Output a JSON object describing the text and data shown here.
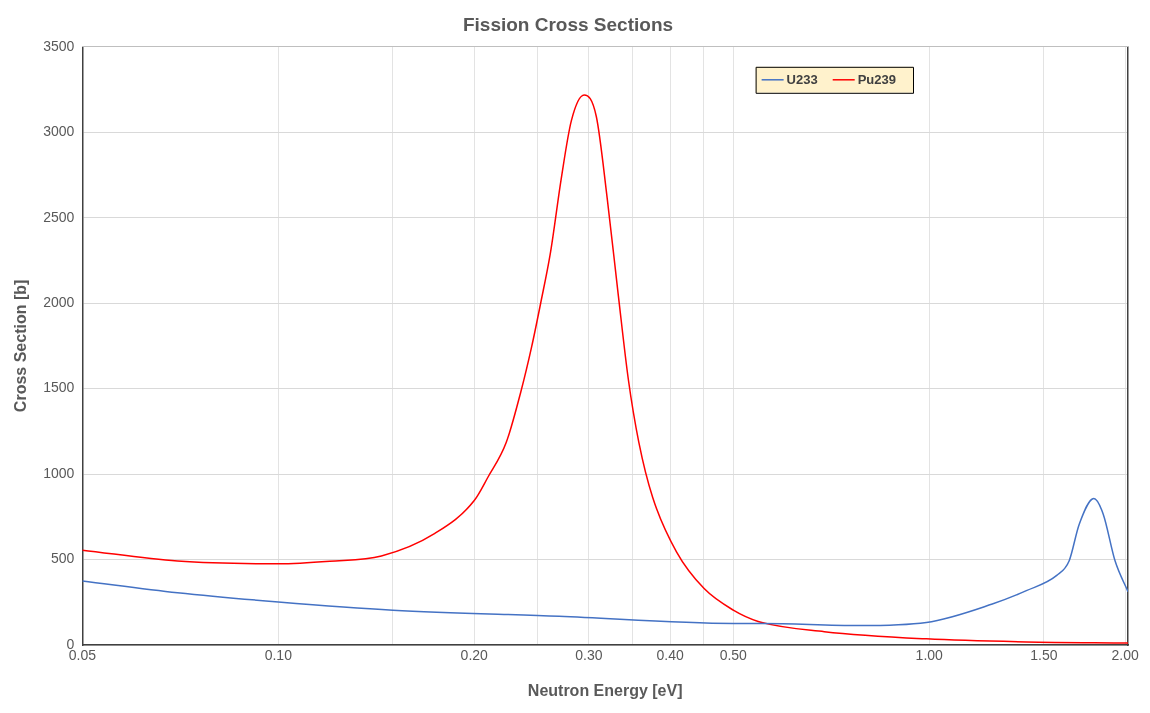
{
  "chart_data": {
    "type": "line",
    "title": "Fission Cross Sections",
    "xlabel": "Neutron Energy [eV]",
    "ylabel": "Cross Section [b]",
    "log": "x",
    "grid": true,
    "legend": "top right",
    "marker": "none",
    "line_style": "solid",
    "xlim": [
      0.05,
      2.02
    ],
    "xticks": [
      {
        "value": 0.05,
        "label": "0.05"
      },
      {
        "value": 0.1,
        "label": "0.10"
      },
      {
        "value": 0.15,
        "label": null
      },
      {
        "value": 0.2,
        "label": "0.20"
      },
      {
        "value": 0.25,
        "label": null
      },
      {
        "value": 0.3,
        "label": "0.30"
      },
      {
        "value": 0.35,
        "label": null
      },
      {
        "value": 0.4,
        "label": "0.40"
      },
      {
        "value": 0.45,
        "label": null
      },
      {
        "value": 0.5,
        "label": "0.50"
      },
      {
        "value": 1,
        "label": "1.00"
      },
      {
        "value": 1.5,
        "label": "1.50"
      },
      {
        "value": 2,
        "label": "2.00"
      }
    ],
    "ylim": [
      0,
      3500
    ],
    "yticks": [
      0,
      500,
      1000,
      1500,
      2000,
      2500,
      3000,
      3500
    ],
    "series": [
      {
        "name": "U233",
        "color": "#4472c4",
        "x": [
          0.05,
          0.07,
          0.1,
          0.15,
          0.27,
          0.5,
          0.55,
          0.78,
          0.99,
          1.25,
          1.41,
          1.57,
          1.64,
          1.7,
          1.79,
          1.85,
          1.93,
          2.02
        ],
        "values": [
          375,
          306,
          252,
          204,
          168,
          126,
          126,
          114,
          132,
          240,
          318,
          407,
          491,
          707,
          857,
          767,
          491,
          312
        ]
      },
      {
        "name": "Pu239",
        "color": "#ff0000",
        "x": [
          0.05,
          0.07,
          0.1,
          0.12,
          0.144,
          0.174,
          0.2,
          0.21,
          0.224,
          0.236,
          0.245,
          0.253,
          0.262,
          0.272,
          0.282,
          0.295,
          0.308,
          0.32,
          0.333,
          0.345,
          0.358,
          0.376,
          0.409,
          0.451,
          0.5,
          0.546,
          0.69,
          0.99,
          1.41,
          2.02
        ],
        "values": [
          555,
          491,
          475,
          490,
          521,
          653,
          845,
          983,
          1186,
          1486,
          1744,
          2001,
          2300,
          2726,
          3068,
          3218,
          3092,
          2618,
          2043,
          1552,
          1186,
          863,
          545,
          330,
          204,
          138,
          78,
          36,
          18,
          12
        ]
      }
    ]
  }
}
